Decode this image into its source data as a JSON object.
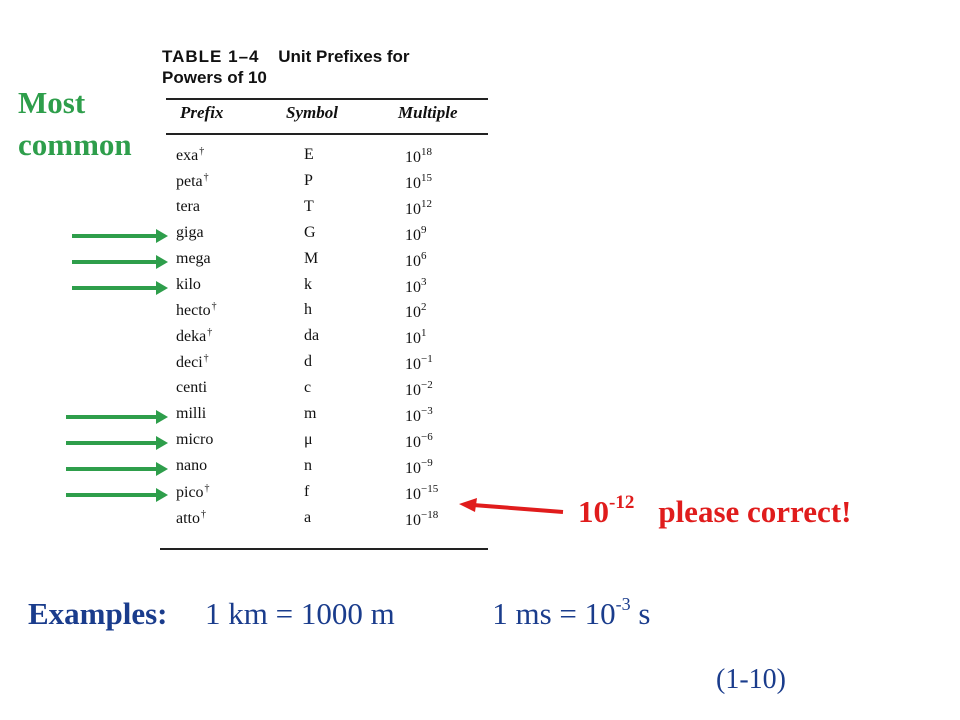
{
  "side_label": {
    "line1": "Most",
    "line2": "common"
  },
  "table": {
    "number": "TABLE 1–4",
    "title_line1": "Unit Prefixes for",
    "title_line2": "Powers of 10",
    "headers": {
      "prefix": "Prefix",
      "symbol": "Symbol",
      "multiple": "Multiple"
    },
    "dagger": "†",
    "rows": [
      {
        "prefix": "exa",
        "dagger": true,
        "symbol": "E",
        "base": "10",
        "exp": "18"
      },
      {
        "prefix": "peta",
        "dagger": true,
        "symbol": "P",
        "base": "10",
        "exp": "15"
      },
      {
        "prefix": "tera",
        "dagger": false,
        "symbol": "T",
        "base": "10",
        "exp": "12"
      },
      {
        "prefix": "giga",
        "dagger": false,
        "symbol": "G",
        "base": "10",
        "exp": "9"
      },
      {
        "prefix": "mega",
        "dagger": false,
        "symbol": "M",
        "base": "10",
        "exp": "6"
      },
      {
        "prefix": "kilo",
        "dagger": false,
        "symbol": "k",
        "base": "10",
        "exp": "3"
      },
      {
        "prefix": "hecto",
        "dagger": true,
        "symbol": "h",
        "base": "10",
        "exp": "2"
      },
      {
        "prefix": "deka",
        "dagger": true,
        "symbol": "da",
        "base": "10",
        "exp": "1"
      },
      {
        "prefix": "deci",
        "dagger": true,
        "symbol": "d",
        "base": "10",
        "exp": "−1"
      },
      {
        "prefix": "centi",
        "dagger": false,
        "symbol": "c",
        "base": "10",
        "exp": "−2"
      },
      {
        "prefix": "milli",
        "dagger": false,
        "symbol": "m",
        "base": "10",
        "exp": "−3"
      },
      {
        "prefix": "micro",
        "dagger": false,
        "symbol": "μ",
        "base": "10",
        "exp": "−6"
      },
      {
        "prefix": "nano",
        "dagger": false,
        "symbol": "n",
        "base": "10",
        "exp": "−9"
      },
      {
        "prefix": "pico",
        "dagger": true,
        "symbol": "f",
        "base": "10",
        "exp": "−15"
      },
      {
        "prefix": "atto",
        "dagger": true,
        "symbol": "a",
        "base": "10",
        "exp": "−18"
      }
    ]
  },
  "highlighted_prefixes": [
    "giga",
    "mega",
    "kilo",
    "milli",
    "micro",
    "nano",
    "pico"
  ],
  "correction": {
    "base": "10",
    "exp": "-12",
    "text": "please correct!"
  },
  "examples": {
    "label": "Examples:",
    "ex1": "1 km = 1000 m",
    "ex2_prefix": "1 ms = 10",
    "ex2_exp": "-3",
    "ex2_suffix": " s"
  },
  "page_ref": "(1-10)",
  "colors": {
    "green": "#2e9e4b",
    "red": "#e01c1c",
    "blue": "#1a3c8c"
  }
}
